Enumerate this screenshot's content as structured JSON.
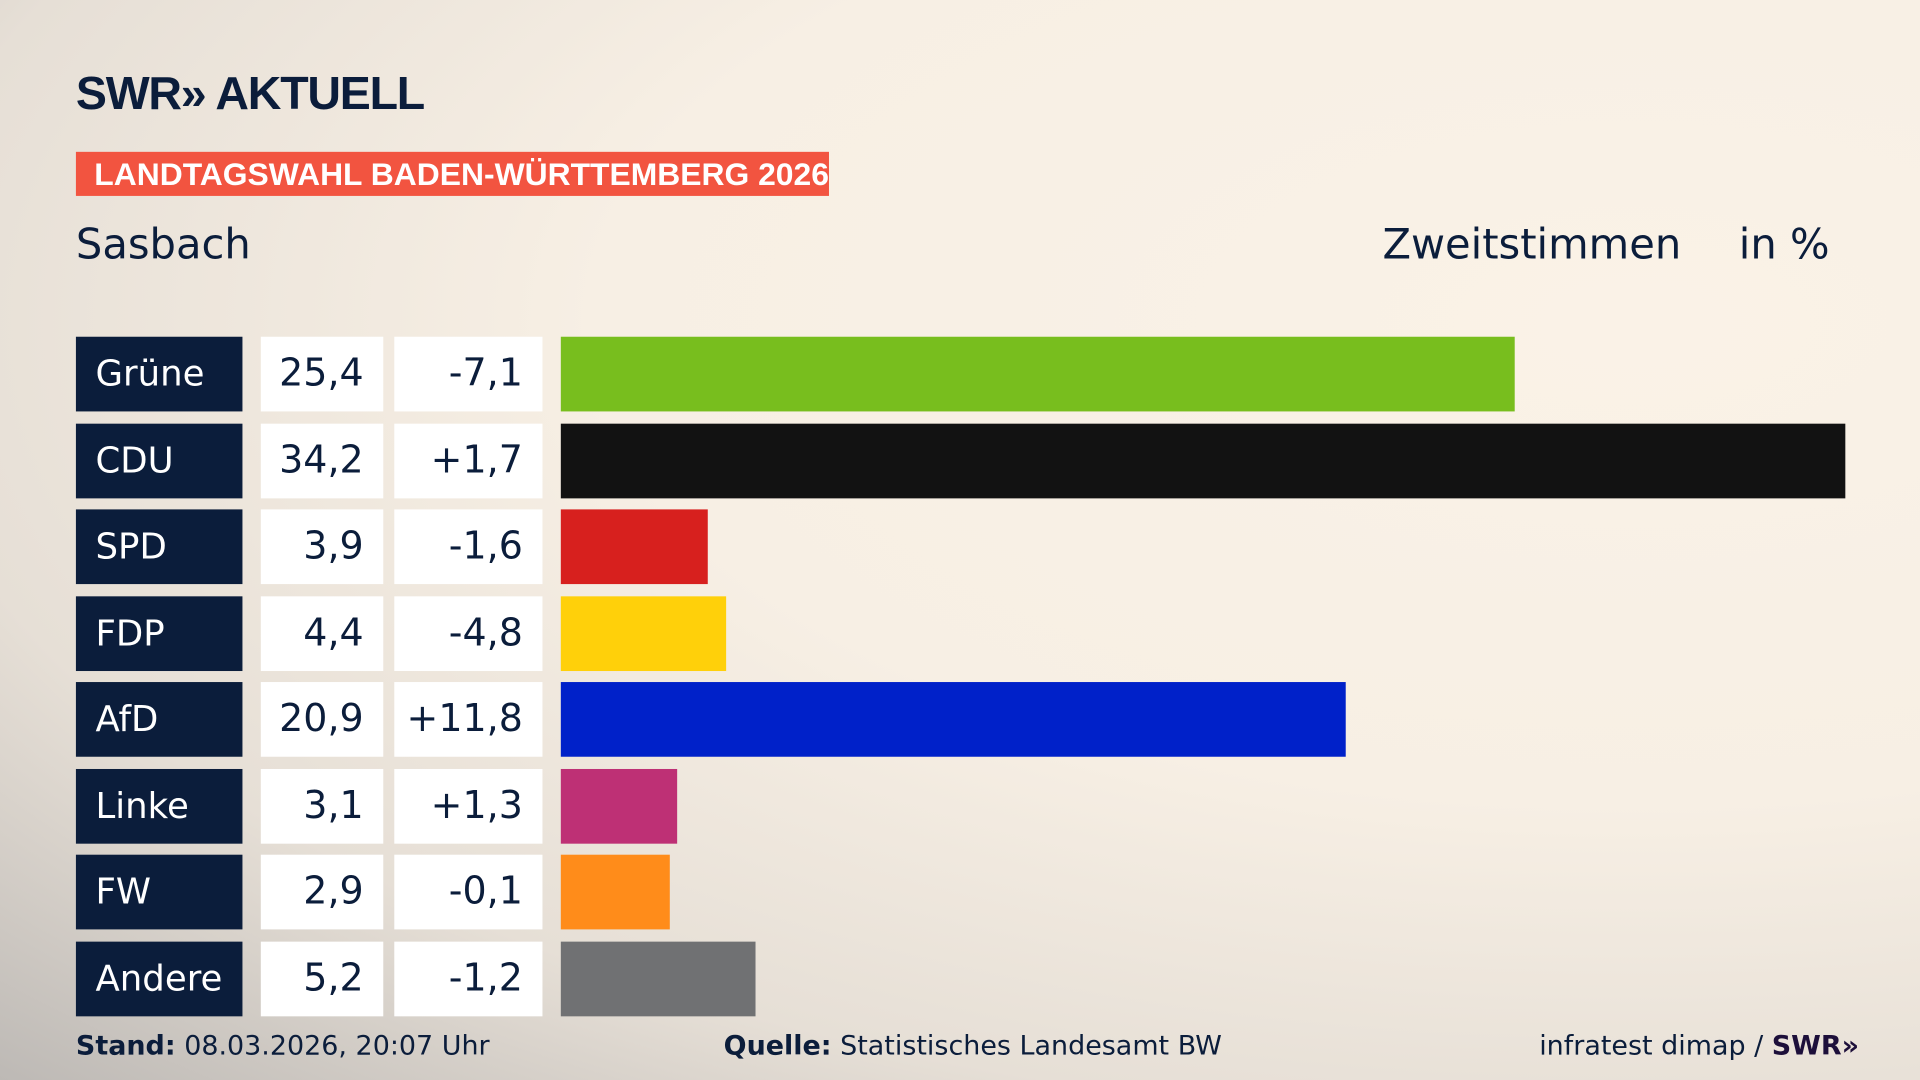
{
  "header": {
    "logo": "SWR» AKTUELL",
    "banner": "LANDTAGSWAHL BADEN-WÜRTTEMBERG 2026",
    "place": "Sasbach",
    "vote_type": "Zweitstimmen",
    "unit": "in %"
  },
  "chart_data": {
    "type": "bar",
    "orientation": "horizontal",
    "categories": [
      "Grüne",
      "CDU",
      "SPD",
      "FDP",
      "AfD",
      "Linke",
      "FW",
      "Andere"
    ],
    "values": [
      "25,4",
      "34,2",
      "3,9",
      "4,4",
      "20,9",
      "3,1",
      "2,9",
      "5,2"
    ],
    "numeric_values": [
      25.4,
      34.2,
      3.9,
      4.4,
      20.9,
      3.1,
      2.9,
      5.2
    ],
    "changes": [
      "-7,1",
      "+1,7",
      "-1,6",
      "-4,8",
      "+11,8",
      "+1,3",
      "-0,1",
      "-1,2"
    ],
    "colors": [
      "#78be1e",
      "#121212",
      "#d7201e",
      "#ffd00a",
      "#0021c9",
      "#be3075",
      "#ff8c1a",
      "#707173"
    ]
  },
  "footer": {
    "stand_label": "Stand:",
    "stand_value": "08.03.2026, 20:07 Uhr",
    "source_label": "Quelle:",
    "source_value": "Statistisches Landesamt BW",
    "credit": "infratest dimap /",
    "credit_logo": "SWR»"
  }
}
